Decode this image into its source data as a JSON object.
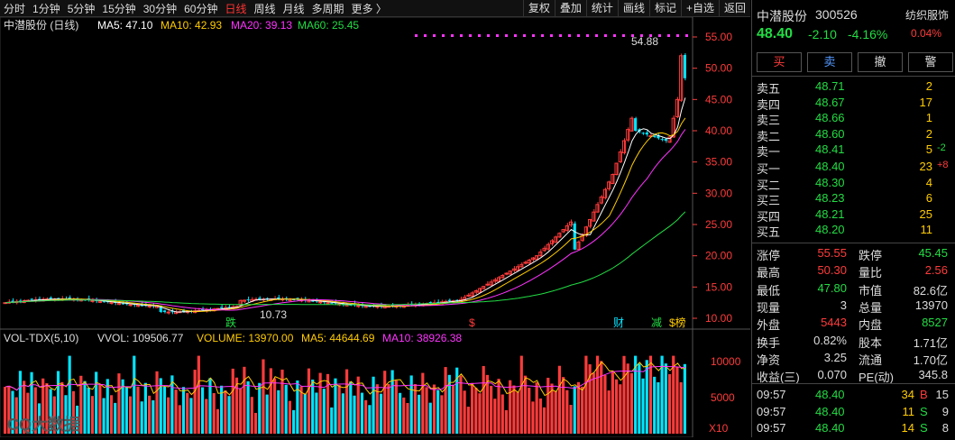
{
  "toolbar": {
    "periods": [
      "分时",
      "1分钟",
      "5分钟",
      "15分钟",
      "30分钟",
      "60分钟",
      "日线",
      "周线",
      "月线",
      "多周期",
      "更多 〉"
    ],
    "active_index": 6,
    "right_buttons": [
      "复权",
      "叠加",
      "统计",
      "画线",
      "标记",
      "+自选",
      "返回"
    ]
  },
  "kline": {
    "title": "中潜股份 (日线)",
    "ma5": "MA5: 47.10",
    "ma10": "MA10: 42.93",
    "ma20": "MA20: 39.13",
    "ma60": "MA60: 25.45",
    "high_label": "54.88",
    "low_label": "10.73",
    "markers": [
      "跌",
      "$",
      "财",
      "减",
      "$榜"
    ],
    "yaxis": [
      "55.00",
      "50.00",
      "45.00",
      "40.00",
      "35.00",
      "30.00",
      "25.00",
      "20.00",
      "15.00",
      "10.00"
    ]
  },
  "volume": {
    "title": "VOL-TDX(5,10)",
    "vvol": "VVOL: 109506.77",
    "volume": "VOLUME: 13970.00",
    "ma5": "MA5: 44644.69",
    "ma10": "MA10: 38926.38",
    "yaxis": [
      "10000",
      "5000"
    ],
    "unit": "X10"
  },
  "watermark": "CQ大数据",
  "colors": {
    "up": "#ff3b3b",
    "down": "#00e5ff",
    "ma5": "#ffffff",
    "ma10": "#ffcc00",
    "ma20": "#ff33ff",
    "ma60": "#22dd44"
  },
  "stock": {
    "name": "中潜股份",
    "code": "300526",
    "sector": "纺织服饰",
    "price": "48.40",
    "change": "-2.10",
    "change_pct": "-4.16%",
    "small_pct": "0.04%",
    "buttons": [
      "买",
      "卖",
      "撤",
      "警"
    ]
  },
  "order_book": {
    "asks": [
      {
        "label": "卖五",
        "price": "48.71",
        "vol": "2",
        "delta": ""
      },
      {
        "label": "卖四",
        "price": "48.67",
        "vol": "17",
        "delta": ""
      },
      {
        "label": "卖三",
        "price": "48.66",
        "vol": "1",
        "delta": ""
      },
      {
        "label": "卖二",
        "price": "48.60",
        "vol": "2",
        "delta": ""
      },
      {
        "label": "卖一",
        "price": "48.41",
        "vol": "5",
        "delta": "-2"
      }
    ],
    "bids": [
      {
        "label": "买一",
        "price": "48.40",
        "vol": "23",
        "delta": "+8"
      },
      {
        "label": "买二",
        "price": "48.30",
        "vol": "4",
        "delta": ""
      },
      {
        "label": "买三",
        "price": "48.23",
        "vol": "6",
        "delta": ""
      },
      {
        "label": "买四",
        "price": "48.21",
        "vol": "25",
        "delta": ""
      },
      {
        "label": "买五",
        "price": "48.20",
        "vol": "11",
        "delta": ""
      }
    ]
  },
  "stats": [
    {
      "l1": "涨停",
      "v1": "55.55",
      "c1": "red",
      "l2": "跌停",
      "v2": "45.45",
      "c2": "green"
    },
    {
      "l1": "最高",
      "v1": "50.30",
      "c1": "red",
      "l2": "量比",
      "v2": "2.56",
      "c2": "red"
    },
    {
      "l1": "最低",
      "v1": "47.80",
      "c1": "green",
      "l2": "市值",
      "v2": "82.6亿",
      "c2": "white"
    },
    {
      "l1": "现量",
      "v1": "3",
      "c1": "white",
      "l2": "总量",
      "v2": "13970",
      "c2": "white"
    },
    {
      "l1": "外盘",
      "v1": "5443",
      "c1": "red",
      "l2": "内盘",
      "v2": "8527",
      "c2": "green"
    },
    {
      "l1": "换手",
      "v1": "0.82%",
      "c1": "white",
      "l2": "股本",
      "v2": "1.71亿",
      "c2": "white"
    },
    {
      "l1": "净资",
      "v1": "3.25",
      "c1": "white",
      "l2": "流通",
      "v2": "1.70亿",
      "c2": "white"
    },
    {
      "l1": "收益(三)",
      "v1": "0.070",
      "c1": "white",
      "l2": "PE(动)",
      "v2": "345.8",
      "c2": "white"
    }
  ],
  "ticks": [
    {
      "time": "09:57",
      "price": "48.40",
      "vol": "34",
      "side": "B",
      "count": "15"
    },
    {
      "time": "09:57",
      "price": "48.40",
      "vol": "11",
      "side": "S",
      "count": "9"
    },
    {
      "time": "09:57",
      "price": "48.40",
      "vol": "14",
      "side": "S",
      "count": "8"
    }
  ]
}
